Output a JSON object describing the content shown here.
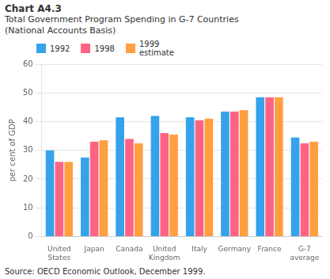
{
  "chart_data": {
    "type": "bar",
    "title": "Chart A4.3",
    "subtitle": [
      "Total Government Program Spending in G-7 Countries",
      "(National Accounts Basis)"
    ],
    "ylabel": "per cent of GDP",
    "annotations": [
      "Source: OECD Economic Outlook, December 1999."
    ],
    "categories": [
      "United\nStates",
      "Japan",
      "Canada",
      "United\nKingdom",
      "Italy",
      "Germany",
      "France",
      "G-7\naverage"
    ],
    "series": [
      {
        "name": "1992",
        "color": "#36a2eb",
        "values": [
          30.0,
          27.5,
          41.5,
          42.0,
          41.5,
          43.5,
          48.5,
          34.5
        ]
      },
      {
        "name": "1998",
        "color": "#ff6384",
        "values": [
          26.0,
          33.0,
          34.0,
          36.0,
          40.5,
          43.5,
          48.5,
          32.5
        ]
      },
      {
        "name": "1999\nestimate",
        "color": "#ff9f40",
        "values": [
          26.0,
          33.5,
          32.5,
          35.5,
          41.0,
          44.0,
          48.5,
          33.0
        ]
      }
    ],
    "ylim": [
      0,
      60
    ],
    "yticks": [
      0,
      10,
      20,
      30,
      40,
      50,
      60
    ],
    "grid": true,
    "legend": "upper left"
  }
}
